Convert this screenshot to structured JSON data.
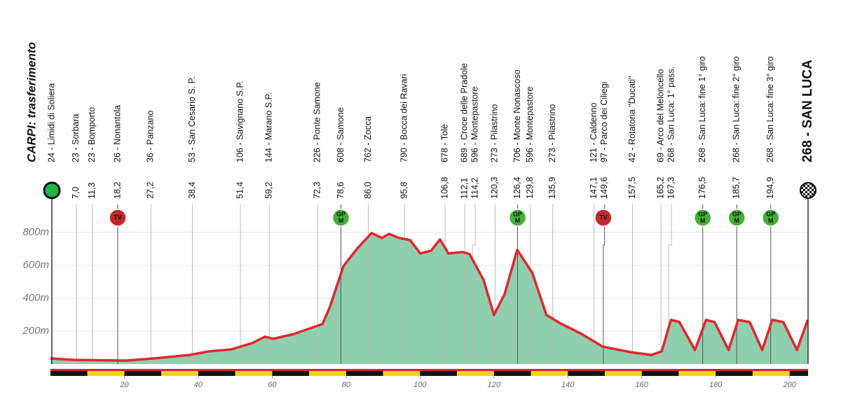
{
  "chart_data": {
    "type": "area",
    "title": "CARPI: trasferimento",
    "start": "24 - Limidi di Soliera",
    "finish": "268 - SAN LUCA",
    "color": "#e3262e",
    "fill": "#8fcfae",
    "xlim": [
      0,
      205
    ],
    "xticks": [
      20,
      40,
      60,
      80,
      100,
      120,
      140,
      160,
      180,
      200
    ],
    "ylim": [
      0,
      1000
    ],
    "yticks": [
      {
        "value": 200,
        "label": "200m"
      },
      {
        "value": 400,
        "label": "400m"
      },
      {
        "value": 600,
        "label": "600m"
      },
      {
        "value": 800,
        "label": "800m"
      }
    ],
    "grid": true,
    "x": [
      0,
      6.3,
      20.5,
      28,
      37.6,
      43,
      49,
      54.7,
      58,
      60.3,
      66,
      69.8,
      73.6,
      75.5,
      79.3,
      83,
      86.9,
      89.7,
      91.6,
      94.4,
      97.3,
      100.1,
      103,
      105.4,
      107.7,
      111.5,
      113.4,
      117.2,
      120,
      122.9,
      126.3,
      130.4,
      134.2,
      138,
      143.7,
      149.4,
      157,
      162.6,
      165.4,
      167.9,
      170.2,
      174.4,
      177.4,
      179.7,
      183.5,
      186.1,
      189.2,
      192.6,
      195.3,
      198.3,
      202,
      204.9
    ],
    "values": [
      34,
      25,
      21,
      34,
      55,
      77,
      89,
      128,
      166,
      153,
      183,
      213,
      243,
      340,
      596,
      702,
      796,
      766,
      791,
      766,
      753,
      672,
      689,
      757,
      672,
      681,
      668,
      511,
      298,
      426,
      694,
      553,
      298,
      247,
      183,
      106,
      72,
      55,
      77,
      268,
      255,
      85,
      268,
      255,
      85,
      268,
      255,
      85,
      268,
      255,
      85,
      268
    ],
    "waypoints": [
      {
        "name": "23 - Sorbara",
        "km": {
          "value": 7.0,
          "label": "7,0"
        }
      },
      {
        "name": "23 - Bomporto",
        "km": {
          "value": 11.3,
          "label": "11,3"
        }
      },
      {
        "name": "26 - Nonantola",
        "km": {
          "value": 18.2,
          "label": "18,2"
        },
        "marker": {
          "lines": [
            "TV"
          ],
          "color": "#c1272d"
        }
      },
      {
        "name": "36 - Panzano",
        "km": {
          "value": 27.2,
          "label": "27,2"
        }
      },
      {
        "name": "53 - San Cesario S. P.",
        "km": {
          "value": 38.4,
          "label": "38,4"
        }
      },
      {
        "name": "106 - Savignano S.P.",
        "km": {
          "value": 51.4,
          "label": "51,4"
        }
      },
      {
        "name": "144 - Marano S.P.",
        "km": {
          "value": 59.2,
          "label": "59,2"
        }
      },
      {
        "name": "226 - Ponte Samone",
        "km": {
          "value": 72.3,
          "label": "72,3"
        }
      },
      {
        "name": "608 - Samone",
        "km": {
          "value": 78.6,
          "label": "78,6"
        },
        "marker": {
          "lines": [
            "GP",
            "M"
          ],
          "color": "#45b038"
        }
      },
      {
        "name": "762 - Zocca",
        "km": {
          "value": 86.0,
          "label": "86,0"
        }
      },
      {
        "name": "790 - Bocca dei Ravari",
        "km": {
          "value": 95.8,
          "label": "95,8"
        }
      },
      {
        "name": "678 - Tolè",
        "km": {
          "value": 106.8,
          "label": "106,8"
        }
      },
      {
        "name": "689 - Croce delle Pradole",
        "km": {
          "value": 112.1,
          "label": "112,1"
        }
      },
      {
        "name": "596 - Montepastore",
        "km": {
          "value": 114.2,
          "label": "114,2"
        }
      },
      {
        "name": "273 - Pilastrino",
        "km": {
          "value": 120.3,
          "label": "120,3"
        }
      },
      {
        "name": "706 - Monte Nonascoso",
        "km": {
          "value": 126.4,
          "label": "126,4"
        },
        "marker": {
          "lines": [
            "GP",
            "M"
          ],
          "color": "#45b038"
        }
      },
      {
        "name": "596 - Montepastore",
        "km": {
          "value": 129.8,
          "label": "129,8"
        }
      },
      {
        "name": "273 - Pilastrino",
        "km": {
          "value": 135.9,
          "label": "135,9"
        }
      },
      {
        "name": "121 - Calderino",
        "km": {
          "value": 147.1,
          "label": "147,1"
        }
      },
      {
        "name": "97 - Parco dei Ciliegi",
        "km": {
          "value": 149.6,
          "label": "149,6"
        },
        "marker": {
          "lines": [
            "TV"
          ],
          "color": "#c1272d"
        }
      },
      {
        "name": "42 - Rotatoria \"Ducati\"",
        "km": {
          "value": 157.5,
          "label": "157,5"
        }
      },
      {
        "name": "69 - Arco del Meloncello",
        "km": {
          "value": 165.2,
          "label": "165,2"
        }
      },
      {
        "name": "268 - San Luca: 1° pass.",
        "km": {
          "value": 167.3,
          "label": "167,3"
        }
      },
      {
        "name": "268 - San Luca: fine 1° giro",
        "km": {
          "value": 176.5,
          "label": "176,5"
        },
        "marker": {
          "lines": [
            "GP",
            "M"
          ],
          "color": "#45b038"
        }
      },
      {
        "name": "268 - San Luca: fine 2° giro",
        "km": {
          "value": 185.7,
          "label": "185,7"
        },
        "marker": {
          "lines": [
            "GP",
            "M"
          ],
          "color": "#45b038"
        }
      },
      {
        "name": "268 - San Luca: fine 3° giro",
        "km": {
          "value": 194.9,
          "label": "194,9"
        },
        "marker": {
          "lines": [
            "GP",
            "M"
          ],
          "color": "#45b038"
        }
      }
    ]
  }
}
